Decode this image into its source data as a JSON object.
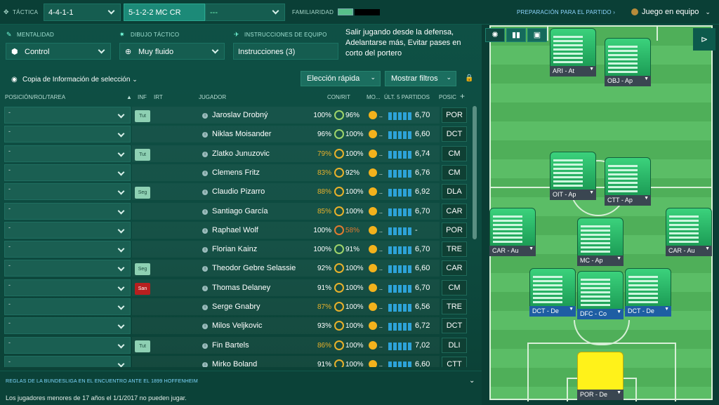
{
  "header": {
    "tactic_label": "TÁCTICA",
    "tactic_formation": "4-4-1-1",
    "tactic_name": "5-1-2-2 MC CR",
    "tactic_third": "---",
    "familiarity_label": "FAMILIARIDAD",
    "prep_link": "PREPARACIÓN PARA EL PARTIDO",
    "team_mode": "Juego en equipo"
  },
  "settings": {
    "mentality_label": "MENTALIDAD",
    "mentality_value": "Control",
    "shape_label": "DIBUJO TÁCTICO",
    "shape_value": "Muy fluido",
    "instructions_label": "INSTRUCCIONES DE EQUIPO",
    "instructions_value": "Instrucciones (3)",
    "instructions_desc": "Salir jugando desde la defensa, Adelantarse más, Evitar pases en corto del portero"
  },
  "panel": {
    "copy_info": "Copia de Información de selección",
    "quick_pick": "Elección rápida",
    "show_filters": "Mostrar filtros"
  },
  "columns": {
    "pos_role": "POSICIÓN/ROL/TAREA",
    "inf": "INF",
    "irt": "IRT",
    "player": "JUGADOR",
    "con_rit": "CON/RIT",
    "mood": "MO...",
    "last5": "ÚLT. 5 PARTIDOS",
    "pos": "POSIC"
  },
  "players": [
    {
      "tag": "Tut",
      "tag_type": "tut",
      "name": "Jaroslav Drobný",
      "con": "100%",
      "rit": "96%",
      "ring": "r1",
      "rating": "6,70",
      "pos": "POR",
      "mood_icon": "sad-icon"
    },
    {
      "tag": "",
      "tag_type": "",
      "name": "Niklas Moisander",
      "con": "96%",
      "rit": "100%",
      "ring": "r1",
      "rating": "6,60",
      "pos": "DCT",
      "mood_icon": "sad-icon"
    },
    {
      "tag": "Tut",
      "tag_type": "tut",
      "name": "Zlatko Junuzovic",
      "con": "79%",
      "rit": "100%",
      "ring": "r2",
      "rating": "6,74",
      "pos": "CM",
      "mood_icon": "sad-icon"
    },
    {
      "tag": "",
      "tag_type": "",
      "name": "Clemens Fritz",
      "con": "83%",
      "rit": "92%",
      "ring": "r2",
      "rating": "6,76",
      "pos": "CM",
      "mood_icon": "warn-icon"
    },
    {
      "tag": "Seg",
      "tag_type": "seg",
      "name": "Claudio Pizarro",
      "con": "88%",
      "rit": "100%",
      "ring": "r2",
      "rating": "6,92",
      "pos": "DLA",
      "mood_icon": "sad-icon"
    },
    {
      "tag": "",
      "tag_type": "",
      "name": "Santiago García",
      "con": "85%",
      "rit": "100%",
      "ring": "r2",
      "rating": "6,70",
      "pos": "CAR",
      "mood_icon": "sad-icon"
    },
    {
      "tag": "",
      "tag_type": "",
      "name": "Raphael Wolf",
      "con": "100%",
      "rit": "58%",
      "ring": "r3",
      "rating": "-",
      "pos": "POR",
      "mood_icon": "sad-icon"
    },
    {
      "tag": "",
      "tag_type": "",
      "name": "Florian Kainz",
      "con": "100%",
      "rit": "91%",
      "ring": "r1",
      "rating": "6,70",
      "pos": "TRE",
      "mood_icon": "warn-icon"
    },
    {
      "tag": "Seg",
      "tag_type": "seg",
      "name": "Theodor Gebre Selassie",
      "con": "92%",
      "rit": "100%",
      "ring": "r2",
      "rating": "6,60",
      "pos": "CAR",
      "mood_icon": "warn-icon"
    },
    {
      "tag": "San",
      "tag_type": "san",
      "name": "Thomas Delaney",
      "con": "91%",
      "rit": "100%",
      "ring": "r2",
      "rating": "6,70",
      "pos": "CM",
      "mood_icon": "warn-icon"
    },
    {
      "tag": "",
      "tag_type": "",
      "name": "Serge Gnabry",
      "con": "87%",
      "rit": "100%",
      "ring": "r2",
      "rating": "6,56",
      "pos": "TRE",
      "mood_icon": "warn-icon"
    },
    {
      "tag": "",
      "tag_type": "",
      "name": "Milos Veljkovic",
      "con": "93%",
      "rit": "100%",
      "ring": "r2",
      "rating": "6,72",
      "pos": "DCT",
      "mood_icon": "sad-icon"
    },
    {
      "tag": "Tut",
      "tag_type": "tut",
      "name": "Fin Bartels",
      "con": "86%",
      "rit": "100%",
      "ring": "r2",
      "rating": "7,02",
      "pos": "DLI",
      "mood_icon": "warn-icon"
    },
    {
      "tag": "",
      "tag_type": "",
      "name": "Mirko Boland",
      "con": "91%",
      "rit": "100%",
      "ring": "r2",
      "rating": "6,60",
      "pos": "CTT",
      "mood_icon": "sad-icon"
    }
  ],
  "rules": {
    "title": "REGLAS DE LA BUNDESLIGA EN EL ENCUENTRO ANTE EL 1899 HOFFENHEIM",
    "text": "Los jugadores menores de 17 años el 1/1/2017 no pueden jugar."
  },
  "pitch": {
    "roles": [
      "ARI - At",
      "OBJ - Ap",
      "OIT - Ap",
      "CTT - Ap",
      "CAR - Au",
      "MC - Ap",
      "CAR - Au",
      "DCT - De",
      "DFC - Co",
      "DCT - De",
      "POR - De"
    ]
  },
  "colors": {
    "accent": "#1c8a78",
    "gk": "#fff21a",
    "shirt": "#1c9c55",
    "rating_bar": "#2da3d9"
  }
}
